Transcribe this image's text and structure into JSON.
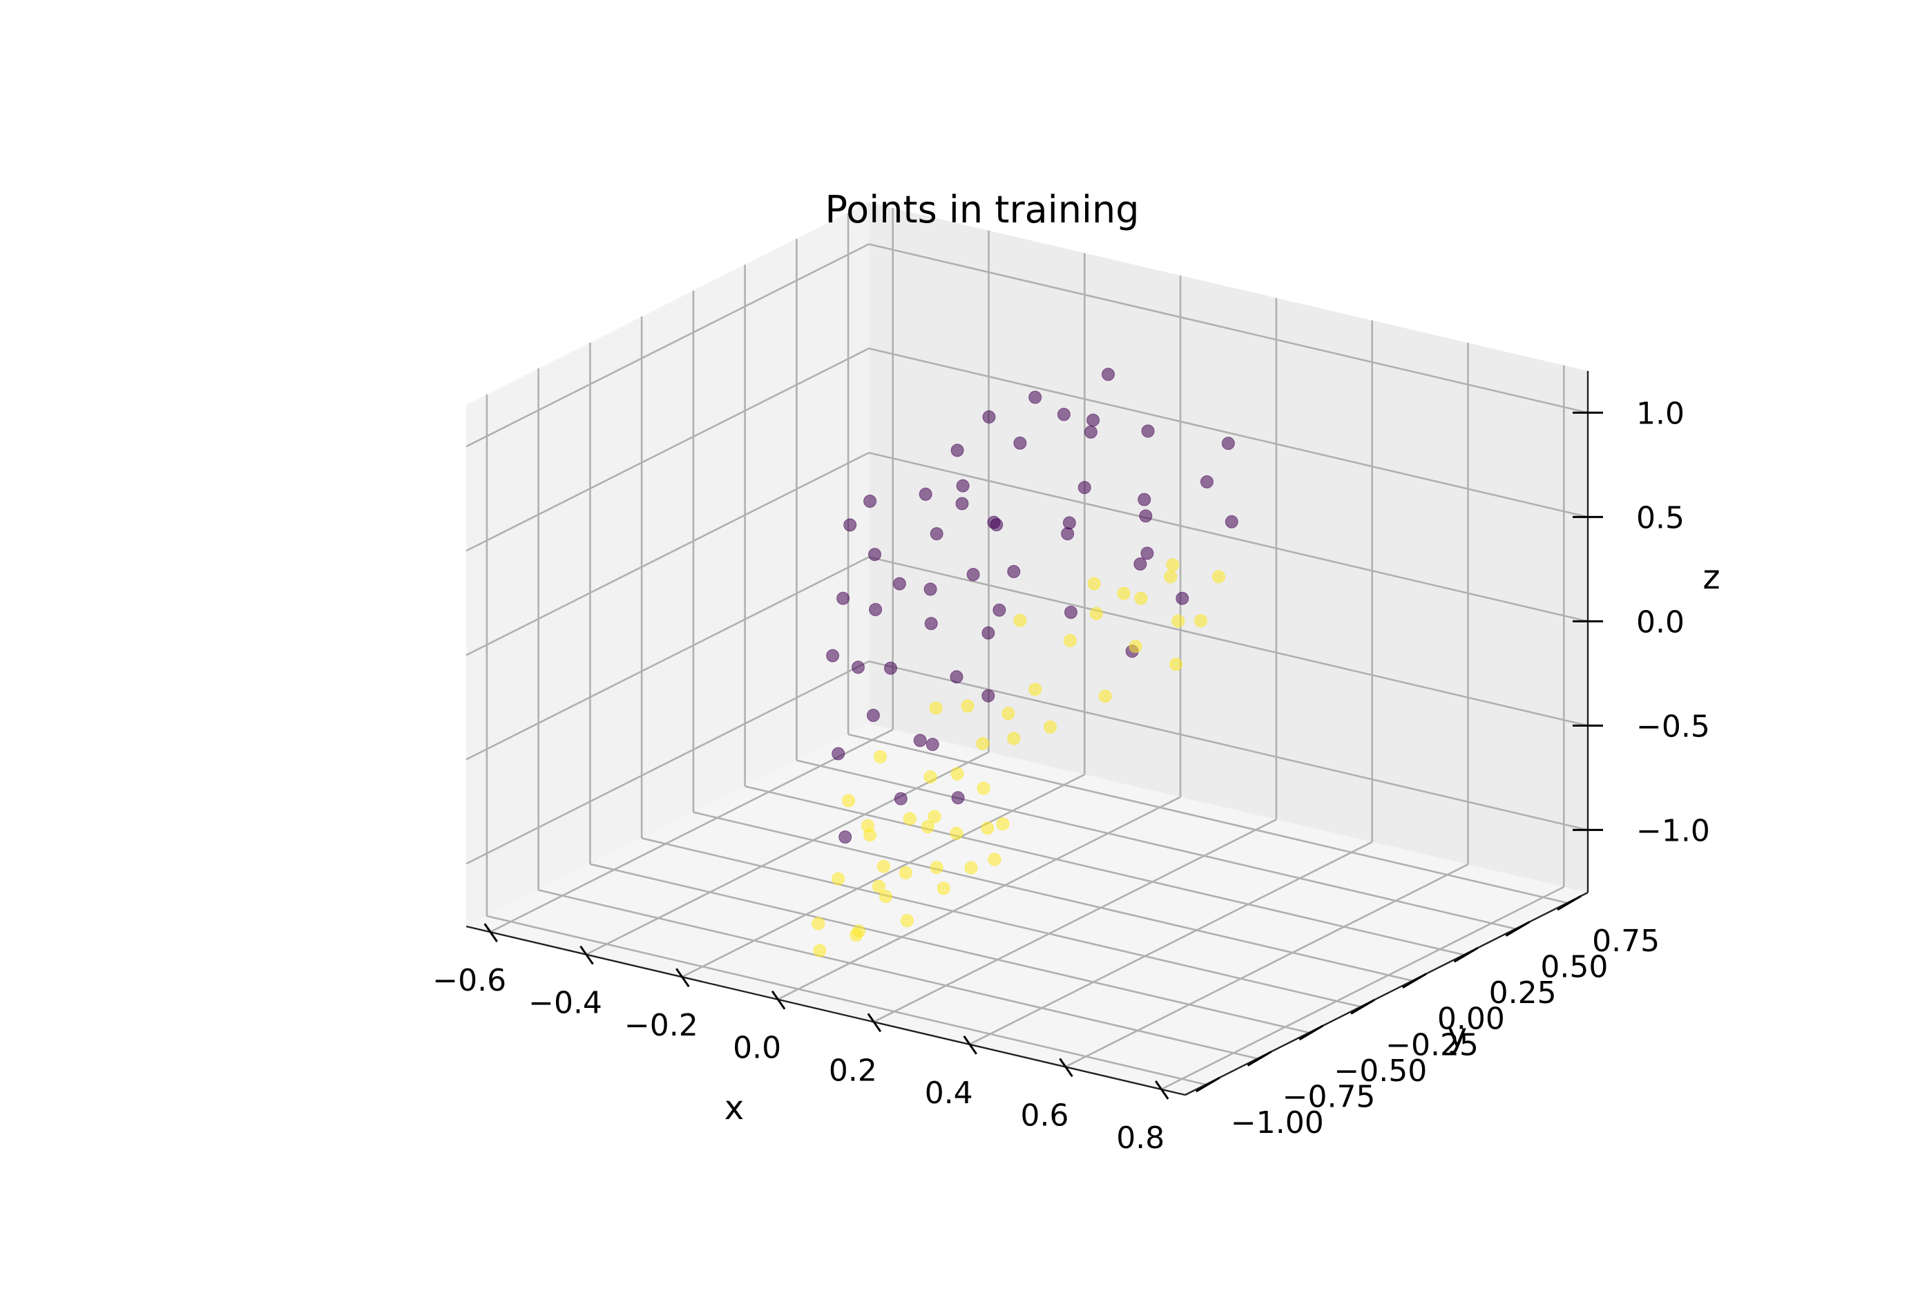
{
  "chart_data": {
    "type": "scatter",
    "projection": "3d",
    "title": "Points in training",
    "xlabel": "x",
    "ylabel": "y",
    "zlabel": "z",
    "xlim": [
      -0.65,
      0.85
    ],
    "ylim": [
      -1.1,
      0.85
    ],
    "zlim": [
      -1.3,
      1.2
    ],
    "xticks": [
      -0.6,
      -0.4,
      -0.2,
      0.0,
      0.2,
      0.4,
      0.6,
      0.8
    ],
    "xtick_labels": [
      "−0.6",
      "−0.4",
      "−0.2",
      "0.0",
      "0.2",
      "0.4",
      "0.6",
      "0.8"
    ],
    "yticks": [
      -1.0,
      -0.75,
      -0.5,
      -0.25,
      0.0,
      0.25,
      0.5,
      0.75
    ],
    "ytick_labels": [
      "−1.00",
      "−0.75",
      "−0.50",
      "−0.25",
      "0.00",
      "0.25",
      "0.50",
      "0.75"
    ],
    "zticks": [
      -1.0,
      -0.5,
      0.0,
      0.5,
      1.0
    ],
    "ztick_labels": [
      "−1.0",
      "−0.5",
      "0.0",
      "0.5",
      "1.0"
    ],
    "grid": true,
    "pane_color": "#f2f2f2",
    "grid_color": "#b0b0b0",
    "class_colors": [
      "#440154",
      "#fde725"
    ],
    "marker_alpha": 0.55,
    "series": [
      {
        "class": 0,
        "points": [
          [
            0.02,
            0.1,
            1.0
          ],
          [
            0.05,
            0.3,
            0.75
          ],
          [
            0.08,
            0.2,
            0.55
          ],
          [
            0.0,
            0.5,
            0.9
          ],
          [
            0.1,
            0.45,
            0.3
          ],
          [
            0.04,
            0.6,
            0.6
          ],
          [
            0.12,
            0.7,
            0.35
          ],
          [
            -0.02,
            0.35,
            0.2
          ],
          [
            0.06,
            0.55,
            0.05
          ],
          [
            0.15,
            0.75,
            0.15
          ],
          [
            0.03,
            0.25,
            -0.1
          ],
          [
            0.09,
            0.65,
            -0.2
          ],
          [
            0.11,
            0.4,
            0.1
          ],
          [
            0.07,
            0.15,
            0.4
          ],
          [
            0.01,
            0.05,
            0.8
          ],
          [
            0.13,
            0.78,
            0.5
          ],
          [
            -0.01,
            0.45,
            0.7
          ],
          [
            0.05,
            0.5,
            -0.4
          ],
          [
            0.14,
            0.35,
            0.45
          ],
          [
            0.08,
            0.1,
            0.95
          ],
          [
            0.02,
            -0.1,
            0.5
          ],
          [
            0.04,
            -0.3,
            0.7
          ],
          [
            0.06,
            -0.5,
            0.4
          ],
          [
            0.03,
            -0.7,
            0.65
          ],
          [
            0.05,
            -0.9,
            0.55
          ],
          [
            0.02,
            -0.2,
            0.3
          ],
          [
            0.04,
            -0.45,
            0.2
          ],
          [
            0.01,
            -0.65,
            0.35
          ],
          [
            0.06,
            -0.85,
            0.2
          ],
          [
            0.03,
            -0.15,
            0.0
          ],
          [
            0.05,
            -0.35,
            -0.1
          ],
          [
            0.02,
            -0.6,
            0.05
          ],
          [
            0.07,
            -0.8,
            -0.05
          ],
          [
            0.04,
            -0.05,
            0.25
          ],
          [
            0.03,
            -0.4,
            0.6
          ],
          [
            0.0,
            -0.75,
            0.8
          ],
          [
            0.05,
            -0.95,
            0.3
          ],
          [
            0.02,
            -0.25,
            0.75
          ],
          [
            0.06,
            -0.55,
            -0.3
          ],
          [
            0.04,
            -0.9,
            -0.2
          ],
          [
            0.01,
            -0.1,
            1.0
          ],
          [
            0.03,
            -0.3,
            0.95
          ],
          [
            0.05,
            -0.5,
            0.85
          ],
          [
            0.02,
            -0.7,
            0.9
          ],
          [
            0.04,
            -0.12,
            0.1
          ],
          [
            0.06,
            -0.22,
            -0.25
          ],
          [
            0.03,
            -0.42,
            -0.4
          ],
          [
            0.05,
            -0.62,
            -0.55
          ],
          [
            0.02,
            -0.82,
            -0.65
          ],
          [
            0.04,
            -0.32,
            -0.7
          ],
          [
            0.06,
            -0.18,
            0.55
          ],
          [
            0.03,
            -0.58,
            0.45
          ]
        ]
      },
      {
        "class": 1,
        "points": [
          [
            0.05,
            0.2,
            -0.2
          ],
          [
            0.1,
            0.4,
            -0.3
          ],
          [
            0.15,
            0.6,
            -0.25
          ],
          [
            0.02,
            0.1,
            -0.4
          ],
          [
            0.08,
            0.3,
            -0.5
          ],
          [
            0.12,
            0.55,
            -0.45
          ],
          [
            0.06,
            0.7,
            -0.35
          ],
          [
            0.03,
            0.15,
            -0.6
          ],
          [
            0.09,
            0.45,
            -0.1
          ],
          [
            0.14,
            0.25,
            0.05
          ],
          [
            0.07,
            0.65,
            -0.05
          ],
          [
            0.11,
            0.78,
            -0.15
          ],
          [
            0.04,
            0.35,
            -0.15
          ],
          [
            0.13,
            0.5,
            0.0
          ],
          [
            0.01,
            0.05,
            -0.05
          ],
          [
            0.1,
            0.2,
            0.1
          ],
          [
            0.05,
            -0.1,
            -0.4
          ],
          [
            0.03,
            -0.3,
            -0.6
          ],
          [
            0.06,
            -0.5,
            -0.5
          ],
          [
            0.02,
            -0.7,
            -0.7
          ],
          [
            0.04,
            -0.9,
            -0.8
          ],
          [
            0.05,
            -0.2,
            -0.9
          ],
          [
            0.03,
            -0.4,
            -1.0
          ],
          [
            0.01,
            -0.6,
            -1.05
          ],
          [
            0.04,
            -0.8,
            -1.1
          ],
          [
            0.02,
            -0.15,
            -0.75
          ],
          [
            0.05,
            -0.35,
            -0.85
          ],
          [
            0.03,
            -0.55,
            -0.95
          ],
          [
            0.06,
            -0.75,
            -0.9
          ],
          [
            0.02,
            -0.95,
            -1.0
          ],
          [
            0.04,
            -0.05,
            -0.55
          ],
          [
            0.03,
            -0.25,
            -0.3
          ],
          [
            0.05,
            -0.45,
            -0.2
          ],
          [
            0.02,
            -0.65,
            -0.35
          ],
          [
            0.04,
            -0.85,
            -0.45
          ],
          [
            0.03,
            -0.12,
            -1.1
          ],
          [
            0.01,
            -0.32,
            -1.15
          ],
          [
            0.02,
            -0.52,
            -1.2
          ],
          [
            0.0,
            -0.72,
            -1.18
          ],
          [
            0.01,
            -0.92,
            -1.15
          ],
          [
            0.06,
            -0.6,
            -0.65
          ],
          [
            0.04,
            -0.2,
            -0.5
          ],
          [
            0.05,
            -0.78,
            -0.6
          ],
          [
            0.02,
            -0.42,
            -0.8
          ],
          [
            0.03,
            -0.08,
            -0.95
          ],
          [
            0.05,
            -0.28,
            -1.05
          ],
          [
            0.06,
            -0.48,
            -0.7
          ],
          [
            0.04,
            -0.68,
            -0.85
          ]
        ]
      }
    ]
  }
}
